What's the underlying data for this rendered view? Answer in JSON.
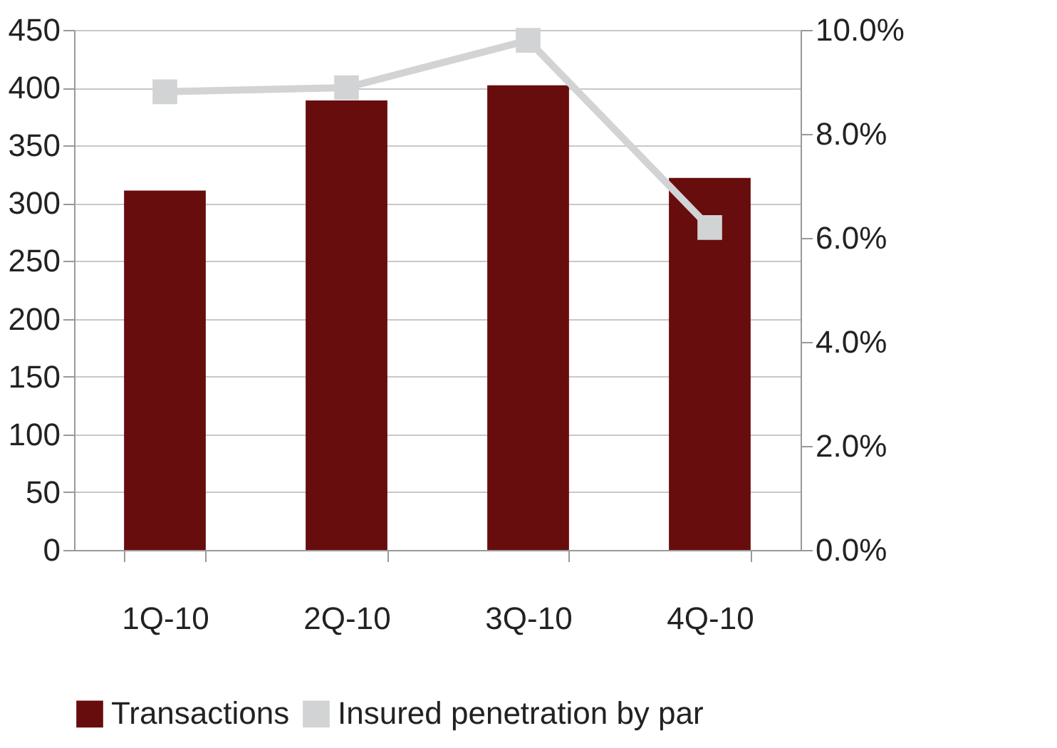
{
  "chart_data": {
    "type": "bar",
    "categories": [
      "1Q-10",
      "2Q-10",
      "3Q-10",
      "4Q-10"
    ],
    "series": [
      {
        "name": "Transactions",
        "color": "#670d0d",
        "values": [
          311,
          389,
          402,
          322
        ]
      },
      {
        "name": "Insured penetration by par",
        "type": "line",
        "axis": "y2",
        "color": "#d2d3d4",
        "marker": "square",
        "values": [
          8.81,
          8.89,
          9.8,
          6.2
        ]
      }
    ],
    "ylim": [
      0,
      450
    ],
    "yticks": [
      0,
      50,
      100,
      150,
      200,
      250,
      300,
      350,
      400,
      450
    ],
    "y2lim": [
      0,
      10
    ],
    "y2ticks": [
      {
        "value": 0,
        "label": "0.0%"
      },
      {
        "value": 2,
        "label": "2.0%"
      },
      {
        "value": 4,
        "label": "4.0%"
      },
      {
        "value": 6,
        "label": "6.0%"
      },
      {
        "value": 8,
        "label": "8.0%"
      },
      {
        "value": 10,
        "label": "10.0%"
      }
    ],
    "grid": "y",
    "legend": "bottom"
  }
}
